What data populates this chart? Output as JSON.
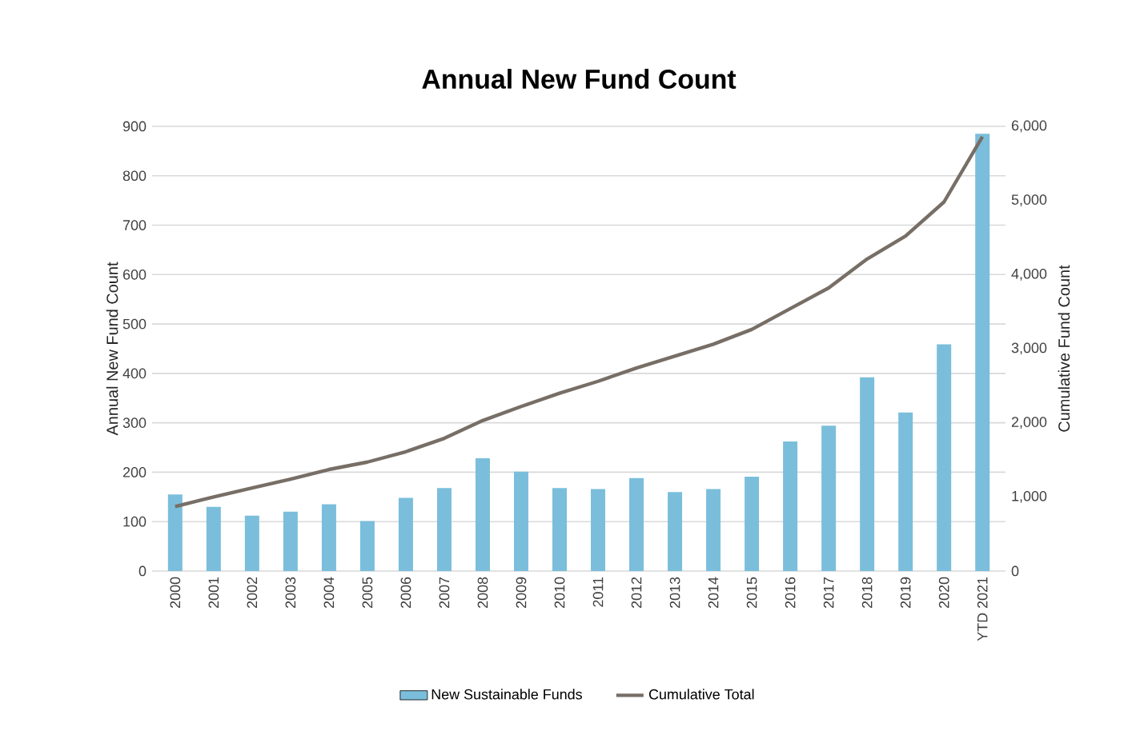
{
  "chart_data": {
    "type": "bar",
    "title": "Annual New Fund Count",
    "ylabel": "Annual New Fund Count",
    "y2label": "Cumulative Fund Count",
    "categories": [
      "2000",
      "2001",
      "2002",
      "2003",
      "2004",
      "2005",
      "2006",
      "2007",
      "2008",
      "2009",
      "2010",
      "2011",
      "2012",
      "2013",
      "2014",
      "2015",
      "2016",
      "2017",
      "2018",
      "2019",
      "2020",
      "YTD 2021"
    ],
    "series": [
      {
        "name": "New Sustainable Funds",
        "color": "#7abedb",
        "values": [
          155,
          130,
          112,
          120,
          135,
          101,
          148,
          168,
          228,
          201,
          168,
          166,
          188,
          160,
          166,
          191,
          262,
          294,
          392,
          321,
          459,
          885
        ]
      },
      {
        "name": "Cumulative Total",
        "type": "line",
        "axis": "y2",
        "color": "#776e66",
        "values": [
          870,
          1000,
          1120,
          1240,
          1370,
          1470,
          1610,
          1790,
          2030,
          2220,
          2400,
          2560,
          2740,
          2900,
          3060,
          3260,
          3540,
          3820,
          4210,
          4520,
          4980,
          5860
        ]
      }
    ],
    "ylim": [
      0,
      900
    ],
    "yticks": [
      0,
      100,
      200,
      300,
      400,
      500,
      600,
      700,
      800,
      900
    ],
    "y2lim": [
      0,
      6000
    ],
    "y2ticks": [
      0,
      {
        "value": 1000,
        "label": "1,000"
      },
      {
        "value": 2000,
        "label": "2,000"
      },
      {
        "value": 3000,
        "label": "3,000"
      },
      {
        "value": 4000,
        "label": "4,000"
      },
      {
        "value": 5000,
        "label": "5,000"
      },
      {
        "value": 6000,
        "label": "6,000"
      }
    ],
    "grid": "y",
    "legend": "bottom"
  }
}
